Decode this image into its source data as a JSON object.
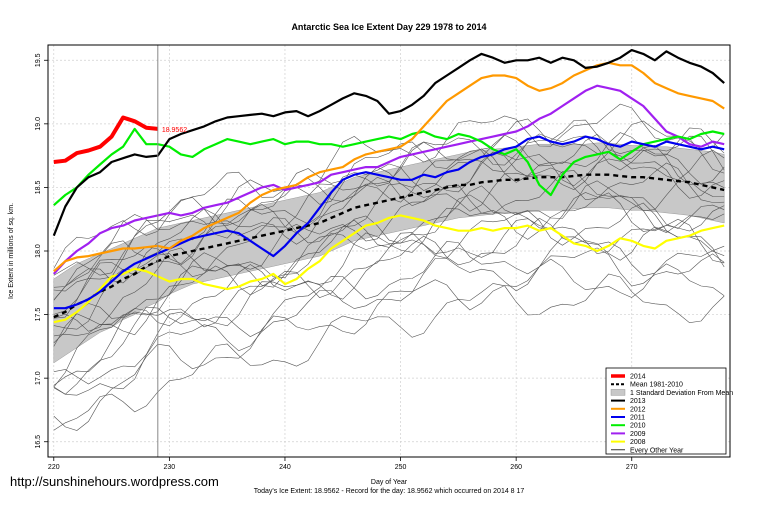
{
  "chart_data": {
    "type": "line",
    "title": "Antarctic Sea Ice Extent Day 229 1978 to 2014",
    "xlabel": "Day of Year",
    "ylabel": "Ice Extent in millions of sq. km.",
    "xlim": [
      219.5,
      278.5
    ],
    "ylim": [
      16.38,
      19.62
    ],
    "x_ticks": [
      220,
      230,
      240,
      250,
      260,
      270
    ],
    "y_ticks": [
      16.5,
      17.0,
      17.5,
      18.0,
      18.5,
      19.0,
      19.5
    ],
    "x_tick_labels": [
      "220",
      "230",
      "240",
      "250",
      "260",
      "270"
    ],
    "y_tick_labels": [
      "16.5",
      "17.0",
      "17.5",
      "18.0",
      "18.5",
      "19.0",
      "19.5"
    ],
    "grid": true,
    "vline_day": 229,
    "current_value_label": "18.9562",
    "legend": [
      {
        "label": "2014",
        "color": "#ff0000",
        "style": "thick"
      },
      {
        "label": "Mean 1981-2010",
        "color": "#000000",
        "style": "dashed"
      },
      {
        "label": "1 Standard Deviation From Mean",
        "color": "#c8c8c8",
        "style": "band"
      },
      {
        "label": "2013",
        "color": "#000000",
        "style": "solid"
      },
      {
        "label": "2012",
        "color": "#ff9900",
        "style": "solid"
      },
      {
        "label": "2011",
        "color": "#0000ee",
        "style": "solid"
      },
      {
        "label": "2010",
        "color": "#00ee00",
        "style": "solid"
      },
      {
        "label": "2009",
        "color": "#a020f0",
        "style": "solid"
      },
      {
        "label": "2008",
        "color": "#ffff00",
        "style": "solid"
      },
      {
        "label": "Every Other Year",
        "color": "#000000",
        "style": "thin"
      }
    ],
    "series": [
      {
        "name": "2014",
        "color": "#ff0000",
        "width": 4,
        "x": [
          220,
          221,
          222,
          223,
          224,
          225,
          226,
          227,
          228,
          229
        ],
        "values": [
          18.7,
          18.71,
          18.77,
          18.79,
          18.82,
          18.9,
          19.05,
          19.02,
          18.97,
          18.96
        ]
      },
      {
        "name": "2013",
        "color": "#000000",
        "width": 2.2,
        "x": [
          220,
          221,
          222,
          223,
          224,
          225,
          226,
          227,
          228,
          229,
          230,
          231,
          232,
          233,
          234,
          235,
          236,
          237,
          238,
          239,
          240,
          241,
          242,
          243,
          244,
          245,
          246,
          247,
          248,
          249,
          250,
          251,
          252,
          253,
          254,
          255,
          256,
          257,
          258,
          259,
          260,
          261,
          262,
          263,
          264,
          265,
          266,
          267,
          268,
          269,
          270,
          271,
          272,
          273,
          274,
          275,
          276,
          277,
          278
        ],
        "values": [
          18.12,
          18.35,
          18.5,
          18.58,
          18.62,
          18.7,
          18.73,
          18.76,
          18.74,
          18.75,
          18.88,
          18.92,
          18.95,
          18.98,
          19.02,
          19.05,
          19.06,
          19.07,
          19.08,
          19.06,
          19.09,
          19.1,
          19.06,
          19.1,
          19.15,
          19.2,
          19.24,
          19.22,
          19.18,
          19.08,
          19.1,
          19.15,
          19.22,
          19.32,
          19.38,
          19.44,
          19.5,
          19.55,
          19.52,
          19.48,
          19.5,
          19.5,
          19.52,
          19.48,
          19.52,
          19.5,
          19.44,
          19.45,
          19.48,
          19.52,
          19.58,
          19.55,
          19.5,
          19.57,
          19.52,
          19.48,
          19.45,
          19.4,
          19.32
        ]
      },
      {
        "name": "2012",
        "color": "#ff9900",
        "width": 2.2,
        "x": [
          220,
          221,
          222,
          223,
          224,
          225,
          226,
          227,
          228,
          229,
          230,
          231,
          232,
          233,
          234,
          235,
          236,
          237,
          238,
          239,
          240,
          241,
          242,
          243,
          244,
          245,
          246,
          247,
          248,
          249,
          250,
          251,
          252,
          253,
          254,
          255,
          256,
          257,
          258,
          259,
          260,
          261,
          262,
          263,
          264,
          265,
          266,
          267,
          268,
          269,
          270,
          271,
          272,
          273,
          274,
          275,
          276,
          277,
          278
        ],
        "values": [
          17.84,
          17.92,
          17.95,
          17.96,
          17.98,
          18.0,
          18.02,
          18.02,
          18.03,
          18.04,
          18.02,
          18.08,
          18.12,
          18.18,
          18.22,
          18.26,
          18.3,
          18.38,
          18.44,
          18.48,
          18.5,
          18.52,
          18.58,
          18.62,
          18.64,
          18.66,
          18.72,
          18.76,
          18.78,
          18.8,
          18.82,
          18.88,
          18.98,
          19.08,
          19.18,
          19.24,
          19.3,
          19.36,
          19.38,
          19.38,
          19.36,
          19.3,
          19.26,
          19.28,
          19.32,
          19.38,
          19.42,
          19.46,
          19.48,
          19.46,
          19.46,
          19.4,
          19.32,
          19.28,
          19.24,
          19.22,
          19.2,
          19.18,
          19.12
        ]
      },
      {
        "name": "2011",
        "color": "#0000ee",
        "width": 2.2,
        "x": [
          220,
          221,
          222,
          223,
          224,
          225,
          226,
          227,
          228,
          229,
          230,
          231,
          232,
          233,
          234,
          235,
          236,
          237,
          238,
          239,
          240,
          241,
          242,
          243,
          244,
          245,
          246,
          247,
          248,
          249,
          250,
          251,
          252,
          253,
          254,
          255,
          256,
          257,
          258,
          259,
          260,
          261,
          262,
          263,
          264,
          265,
          266,
          267,
          268,
          269,
          270,
          271,
          272,
          273,
          274,
          275,
          276,
          277,
          278
        ],
        "values": [
          17.55,
          17.55,
          17.58,
          17.62,
          17.68,
          17.76,
          17.84,
          17.9,
          17.94,
          17.98,
          18.02,
          18.06,
          18.1,
          18.12,
          18.14,
          18.16,
          18.14,
          18.08,
          18.02,
          17.96,
          18.04,
          18.14,
          18.22,
          18.34,
          18.46,
          18.56,
          18.6,
          18.62,
          18.6,
          18.58,
          18.56,
          18.56,
          18.6,
          18.58,
          18.62,
          18.64,
          18.7,
          18.74,
          18.76,
          18.8,
          18.82,
          18.88,
          18.9,
          18.86,
          18.84,
          18.86,
          18.9,
          18.88,
          18.84,
          18.82,
          18.86,
          18.84,
          18.82,
          18.86,
          18.84,
          18.82,
          18.8,
          18.82,
          18.8
        ]
      },
      {
        "name": "2010",
        "color": "#00ee00",
        "width": 2.2,
        "x": [
          220,
          221,
          222,
          223,
          224,
          225,
          226,
          227,
          228,
          229,
          230,
          231,
          232,
          233,
          234,
          235,
          236,
          237,
          238,
          239,
          240,
          241,
          242,
          243,
          244,
          245,
          246,
          247,
          248,
          249,
          250,
          251,
          252,
          253,
          254,
          255,
          256,
          257,
          258,
          259,
          260,
          261,
          262,
          263,
          264,
          265,
          266,
          267,
          268,
          269,
          270,
          271,
          272,
          273,
          274,
          275,
          276,
          277,
          278
        ],
        "values": [
          18.36,
          18.44,
          18.5,
          18.6,
          18.68,
          18.76,
          18.82,
          18.96,
          18.84,
          18.84,
          18.82,
          18.76,
          18.74,
          18.8,
          18.84,
          18.88,
          18.86,
          18.84,
          18.86,
          18.88,
          18.84,
          18.86,
          18.86,
          18.84,
          18.84,
          18.82,
          18.84,
          18.86,
          18.88,
          18.9,
          18.88,
          18.92,
          18.94,
          18.9,
          18.88,
          18.92,
          18.9,
          18.86,
          18.8,
          18.76,
          18.8,
          18.7,
          18.52,
          18.44,
          18.6,
          18.7,
          18.74,
          18.76,
          18.78,
          18.72,
          18.78,
          18.84,
          18.86,
          18.88,
          18.9,
          18.88,
          18.92,
          18.94,
          18.92
        ]
      },
      {
        "name": "2009",
        "color": "#a020f0",
        "width": 2.2,
        "x": [
          220,
          221,
          222,
          223,
          224,
          225,
          226,
          227,
          228,
          229,
          230,
          231,
          232,
          233,
          234,
          235,
          236,
          237,
          238,
          239,
          240,
          241,
          242,
          243,
          244,
          245,
          246,
          247,
          248,
          249,
          250,
          251,
          252,
          253,
          254,
          255,
          256,
          257,
          258,
          259,
          260,
          261,
          262,
          263,
          264,
          265,
          266,
          267,
          268,
          269,
          270,
          271,
          272,
          273,
          274,
          275,
          276,
          277,
          278
        ],
        "values": [
          17.82,
          17.92,
          18.0,
          18.06,
          18.14,
          18.18,
          18.2,
          18.24,
          18.26,
          18.28,
          18.3,
          18.28,
          18.3,
          18.34,
          18.36,
          18.38,
          18.42,
          18.46,
          18.5,
          18.52,
          18.48,
          18.5,
          18.52,
          18.54,
          18.6,
          18.62,
          18.64,
          18.66,
          18.66,
          18.7,
          18.74,
          18.76,
          18.78,
          18.8,
          18.82,
          18.84,
          18.86,
          18.88,
          18.9,
          18.92,
          18.94,
          18.98,
          19.04,
          19.08,
          19.14,
          19.2,
          19.26,
          19.3,
          19.28,
          19.26,
          19.2,
          19.14,
          19.04,
          18.94,
          18.9,
          18.84,
          18.82,
          18.86,
          18.84
        ]
      },
      {
        "name": "2008",
        "color": "#ffff00",
        "width": 2.2,
        "x": [
          220,
          221,
          222,
          223,
          224,
          225,
          226,
          227,
          228,
          229,
          230,
          231,
          232,
          233,
          234,
          235,
          236,
          237,
          238,
          239,
          240,
          241,
          242,
          243,
          244,
          245,
          246,
          247,
          248,
          249,
          250,
          251,
          252,
          253,
          254,
          255,
          256,
          257,
          258,
          259,
          260,
          261,
          262,
          263,
          264,
          265,
          266,
          267,
          268,
          269,
          270,
          271,
          272,
          273,
          274,
          275,
          276,
          277,
          278
        ],
        "values": [
          17.44,
          17.46,
          17.52,
          17.6,
          17.7,
          17.8,
          17.82,
          17.86,
          17.84,
          17.8,
          17.76,
          17.78,
          17.78,
          17.74,
          17.72,
          17.7,
          17.72,
          17.76,
          17.78,
          17.82,
          17.74,
          17.78,
          17.86,
          17.92,
          18.02,
          18.08,
          18.14,
          18.2,
          18.22,
          18.26,
          18.28,
          18.26,
          18.24,
          18.2,
          18.18,
          18.16,
          18.16,
          18.18,
          18.16,
          18.18,
          18.18,
          18.2,
          18.16,
          18.18,
          18.12,
          18.06,
          18.04,
          18.0,
          18.04,
          18.1,
          18.08,
          18.04,
          18.02,
          18.08,
          18.1,
          18.12,
          18.16,
          18.18,
          18.2
        ]
      }
    ],
    "mean": {
      "name": "Mean 1981-2010",
      "x": [
        220,
        221,
        222,
        223,
        224,
        225,
        226,
        227,
        228,
        229,
        230,
        231,
        232,
        233,
        234,
        235,
        236,
        237,
        238,
        239,
        240,
        241,
        242,
        243,
        244,
        245,
        246,
        247,
        248,
        249,
        250,
        251,
        252,
        253,
        254,
        255,
        256,
        257,
        258,
        259,
        260,
        261,
        262,
        263,
        264,
        265,
        266,
        267,
        268,
        269,
        270,
        271,
        272,
        273,
        274,
        275,
        276,
        277,
        278
      ],
      "values": [
        17.48,
        17.52,
        17.58,
        17.62,
        17.68,
        17.72,
        17.78,
        17.82,
        17.88,
        17.92,
        17.96,
        17.98,
        18.0,
        18.02,
        18.04,
        18.06,
        18.08,
        18.1,
        18.12,
        18.14,
        18.16,
        18.18,
        18.2,
        18.22,
        18.26,
        18.3,
        18.34,
        18.36,
        18.38,
        18.4,
        18.42,
        18.44,
        18.46,
        18.48,
        18.5,
        18.52,
        18.52,
        18.54,
        18.55,
        18.56,
        18.56,
        18.57,
        18.58,
        18.58,
        18.58,
        18.59,
        18.6,
        18.6,
        18.6,
        18.59,
        18.58,
        18.58,
        18.57,
        18.56,
        18.55,
        18.54,
        18.52,
        18.5,
        18.48
      ]
    },
    "sd_band": {
      "name": "1 Standard Deviation From Mean",
      "x": [
        220,
        221,
        222,
        223,
        224,
        225,
        226,
        227,
        228,
        229,
        230,
        231,
        232,
        233,
        234,
        235,
        236,
        237,
        238,
        239,
        240,
        241,
        242,
        243,
        244,
        245,
        246,
        247,
        248,
        249,
        250,
        251,
        252,
        253,
        254,
        255,
        256,
        257,
        258,
        259,
        260,
        261,
        262,
        263,
        264,
        265,
        266,
        267,
        268,
        269,
        270,
        271,
        272,
        273,
        274,
        275,
        276,
        277,
        278
      ],
      "upper": [
        17.78,
        17.84,
        17.9,
        17.94,
        17.98,
        18.02,
        18.06,
        18.1,
        18.14,
        18.18,
        18.2,
        18.22,
        18.24,
        18.26,
        18.28,
        18.3,
        18.32,
        18.34,
        18.36,
        18.38,
        18.4,
        18.42,
        18.44,
        18.46,
        18.5,
        18.54,
        18.58,
        18.6,
        18.62,
        18.64,
        18.66,
        18.68,
        18.7,
        18.72,
        18.74,
        18.76,
        18.78,
        18.79,
        18.8,
        18.81,
        18.82,
        18.83,
        18.84,
        18.84,
        18.84,
        18.84,
        18.84,
        18.85,
        18.85,
        18.84,
        18.83,
        18.83,
        18.82,
        18.82,
        18.81,
        18.8,
        18.79,
        18.78,
        18.76
      ],
      "lower": [
        17.12,
        17.18,
        17.24,
        17.3,
        17.36,
        17.4,
        17.46,
        17.5,
        17.56,
        17.6,
        17.66,
        17.7,
        17.74,
        17.76,
        17.78,
        17.8,
        17.82,
        17.84,
        17.86,
        17.88,
        17.9,
        17.92,
        17.94,
        17.96,
        18.0,
        18.04,
        18.08,
        18.1,
        18.12,
        18.14,
        18.16,
        18.18,
        18.2,
        18.22,
        18.24,
        18.26,
        18.27,
        18.28,
        18.29,
        18.3,
        18.3,
        18.31,
        18.32,
        18.32,
        18.32,
        18.33,
        18.34,
        18.34,
        18.34,
        18.33,
        18.32,
        18.32,
        18.31,
        18.3,
        18.29,
        18.28,
        18.26,
        18.24,
        18.22
      ]
    },
    "other_years_note": "Every Other Year (thin grey lines)"
  },
  "footer": {
    "today_line": "Today's Ice Extent: 18.9562  -  Record for the day: 18.9562 which occurred on 2014 8 17"
  },
  "watermark": "http://sunshinehours.wordpress.com"
}
